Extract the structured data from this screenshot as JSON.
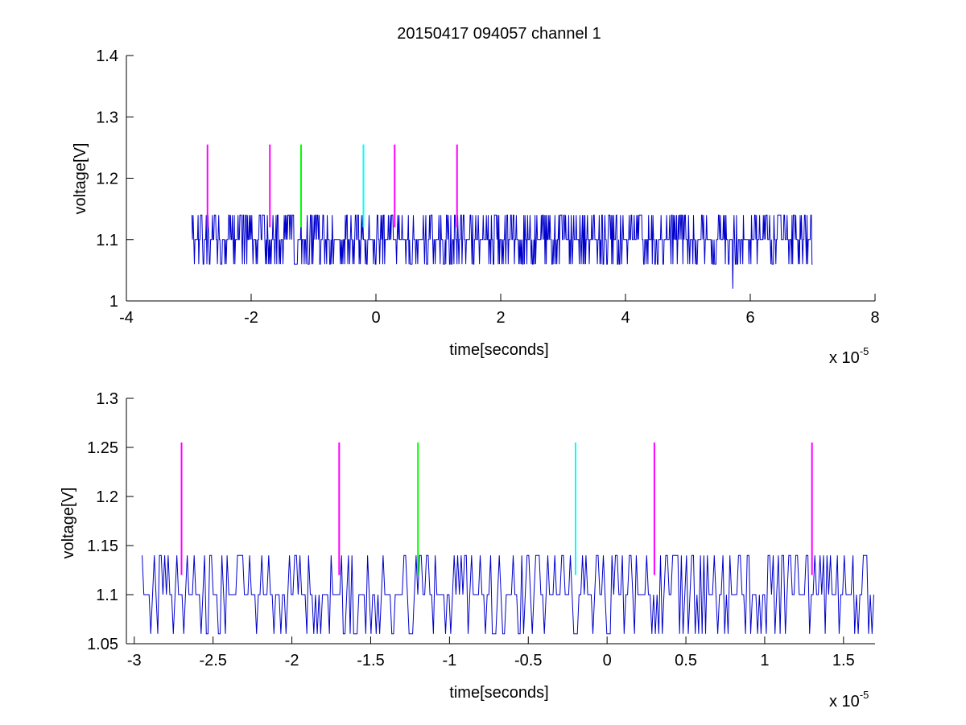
{
  "figure": {
    "title": "20150417 094057 channel 1"
  },
  "colors": {
    "signal": "#0000cc",
    "magenta": "#ff00ff",
    "green": "#00ff00",
    "cyan": "#00ffff",
    "axis": "#000000"
  },
  "chart_data": [
    {
      "type": "line",
      "title": "20150417 094057 channel 1",
      "xlabel": "time[seconds]",
      "ylabel": "voltage[V]",
      "x_exponent_label": "x 10",
      "x_exponent": "-5",
      "xlim": [
        -4,
        8
      ],
      "ylim": [
        1,
        1.4
      ],
      "xticks": [
        -4,
        -2,
        0,
        2,
        4,
        6,
        8
      ],
      "xtick_labels": [
        "-4",
        "-2",
        "0",
        "2",
        "4",
        "6",
        "8"
      ],
      "yticks": [
        1,
        1.1,
        1.2,
        1.3,
        1.4
      ],
      "ytick_labels": [
        "1",
        "1.1",
        "1.2",
        "1.3",
        "1.4"
      ],
      "grid": false,
      "signal": {
        "x_start": -2.95,
        "x_end": 7.0,
        "baseline": 1.1,
        "high": 1.14,
        "low": 1.06,
        "outlier": {
          "x": 5.72,
          "y": 1.02
        }
      },
      "markers": [
        {
          "x": -2.7,
          "y0": 1.12,
          "y1": 1.255,
          "color": "magenta"
        },
        {
          "x": -1.7,
          "y0": 1.12,
          "y1": 1.255,
          "color": "magenta"
        },
        {
          "x": -1.2,
          "y0": 1.12,
          "y1": 1.255,
          "color": "green"
        },
        {
          "x": -0.2,
          "y0": 1.12,
          "y1": 1.255,
          "color": "cyan"
        },
        {
          "x": 0.3,
          "y0": 1.12,
          "y1": 1.255,
          "color": "magenta"
        },
        {
          "x": 1.3,
          "y0": 1.12,
          "y1": 1.255,
          "color": "magenta"
        }
      ]
    },
    {
      "type": "line",
      "title": "",
      "xlabel": "time[seconds]",
      "ylabel": "voltage[V]",
      "x_exponent_label": "x 10",
      "x_exponent": "-5",
      "xlim": [
        -3.05,
        1.7
      ],
      "ylim": [
        1.05,
        1.3
      ],
      "xticks": [
        -3,
        -2.5,
        -2,
        -1.5,
        -1,
        -0.5,
        0,
        0.5,
        1,
        1.5
      ],
      "xtick_labels": [
        "-3",
        "-2.5",
        "-2",
        "-1.5",
        "-1",
        "-0.5",
        "0",
        "0.5",
        "1",
        "1.5"
      ],
      "yticks": [
        1.05,
        1.1,
        1.15,
        1.2,
        1.25,
        1.3
      ],
      "ytick_labels": [
        "1.05",
        "1.1",
        "1.15",
        "1.2",
        "1.25",
        "1.3"
      ],
      "grid": false,
      "signal": {
        "x_start": -2.95,
        "x_end": 1.7,
        "baseline": 1.1,
        "high": 1.14,
        "low": 1.06
      },
      "markers": [
        {
          "x": -2.7,
          "y0": 1.12,
          "y1": 1.255,
          "color": "magenta"
        },
        {
          "x": -1.7,
          "y0": 1.12,
          "y1": 1.255,
          "color": "magenta"
        },
        {
          "x": -1.2,
          "y0": 1.12,
          "y1": 1.255,
          "color": "green"
        },
        {
          "x": -0.2,
          "y0": 1.12,
          "y1": 1.255,
          "color": "cyan"
        },
        {
          "x": 0.3,
          "y0": 1.12,
          "y1": 1.255,
          "color": "magenta"
        },
        {
          "x": 1.3,
          "y0": 1.12,
          "y1": 1.255,
          "color": "magenta"
        }
      ]
    }
  ]
}
